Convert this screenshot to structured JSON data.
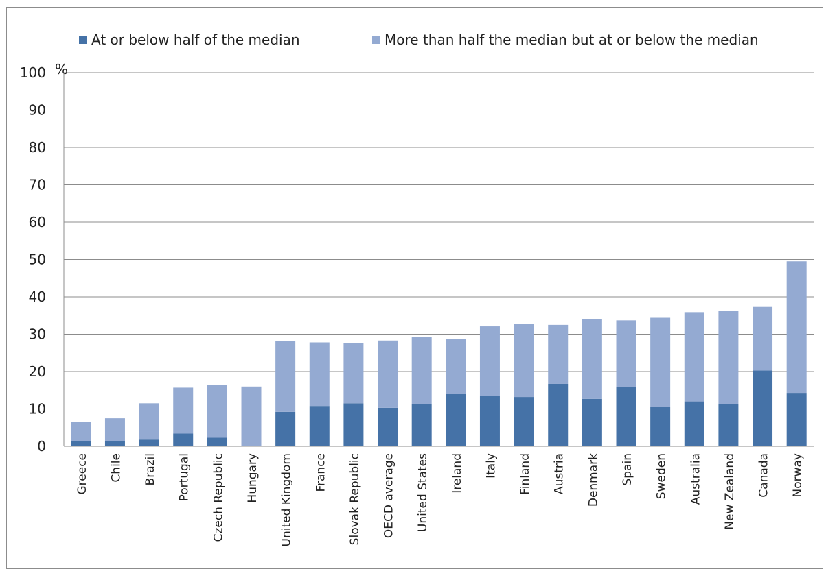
{
  "chart_data": {
    "type": "bar",
    "stacked": true,
    "unit_label": "%",
    "ylim": [
      0,
      100
    ],
    "yticks": [
      0,
      10,
      20,
      30,
      40,
      50,
      60,
      70,
      80,
      90,
      100
    ],
    "grid": true,
    "legend_position": "top",
    "categories": [
      "Greece",
      "Chile",
      "Brazil",
      "Portugal",
      "Czech Republic",
      "Hungary",
      "United Kingdom",
      "France",
      "Slovak Republic",
      "OECD average",
      "United States",
      "Ireland",
      "Italy",
      "Finland",
      "Austria",
      "Denmark",
      "Spain",
      "Sweden",
      "Australia",
      "New Zealand",
      "Canada",
      "Norway"
    ],
    "series": [
      {
        "name": "At or below half of the median",
        "color": "#4572a7",
        "values": [
          1.3,
          1.3,
          1.8,
          3.4,
          2.3,
          0,
          9.2,
          10.8,
          11.5,
          10.3,
          11.3,
          14.1,
          13.4,
          13.2,
          16.7,
          12.7,
          15.8,
          10.5,
          12.0,
          11.2,
          20.3,
          14.3
        ]
      },
      {
        "name": "More than half the median but at or below the median",
        "color": "#94aad2",
        "values": [
          5.3,
          6.2,
          9.7,
          12.3,
          14.1,
          16.0,
          18.9,
          17.0,
          16.1,
          18.0,
          17.9,
          14.6,
          18.7,
          19.6,
          15.8,
          21.3,
          17.9,
          23.9,
          23.9,
          25.1,
          17.0,
          35.2
        ]
      }
    ]
  }
}
